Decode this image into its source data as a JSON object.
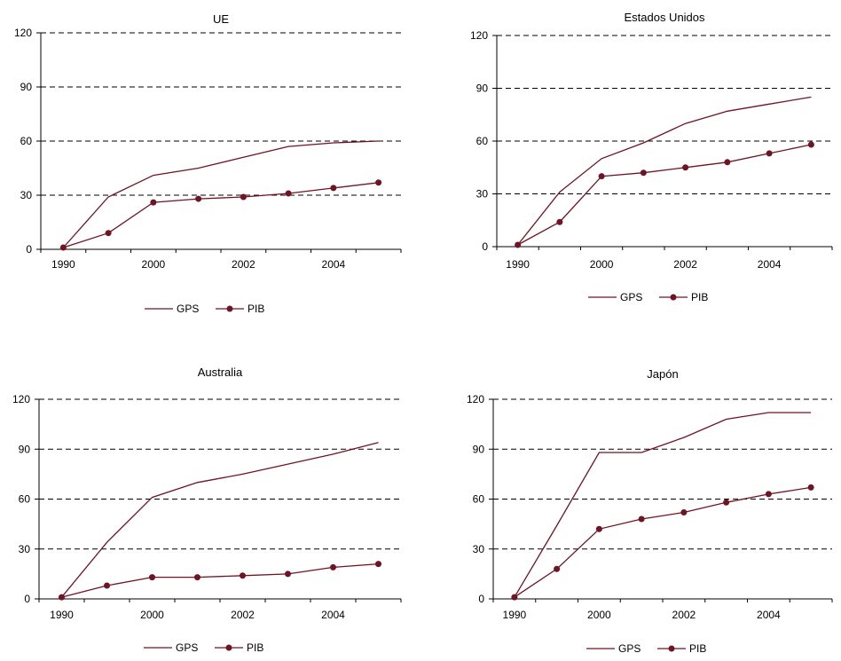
{
  "colors": {
    "series": "#6e1423",
    "grid": "#000000",
    "axis": "#000000"
  },
  "chart_data": [
    {
      "type": "line",
      "title": "UE",
      "x": [
        1990,
        1999,
        2000,
        2001,
        2002,
        2003,
        2004,
        2005
      ],
      "xticks": [
        "1990",
        "2000",
        "2002",
        "2004"
      ],
      "xtick_index": [
        0,
        2,
        4,
        6
      ],
      "yticks": [
        "0",
        "30",
        "60",
        "90",
        "120"
      ],
      "ylim": [
        0,
        120
      ],
      "grid": true,
      "legend": "bottom",
      "series": [
        {
          "name": "GPS",
          "marker": false,
          "values": [
            1,
            29,
            41,
            45,
            51,
            57,
            59,
            60
          ]
        },
        {
          "name": "PIB",
          "marker": true,
          "values": [
            1,
            9,
            26,
            28,
            29,
            31,
            34,
            37
          ]
        }
      ]
    },
    {
      "type": "line",
      "title": "Estados Unidos",
      "x": [
        1990,
        1999,
        2000,
        2001,
        2002,
        2003,
        2004,
        2005
      ],
      "xticks": [
        "1990",
        "2000",
        "2002",
        "2004"
      ],
      "xtick_index": [
        0,
        2,
        4,
        6
      ],
      "yticks": [
        "0",
        "30",
        "60",
        "90",
        "120"
      ],
      "ylim": [
        0,
        120
      ],
      "grid": true,
      "legend": "bottom",
      "series": [
        {
          "name": "GPS",
          "marker": false,
          "values": [
            1,
            31,
            50,
            59,
            70,
            77,
            81,
            85
          ]
        },
        {
          "name": "PIB",
          "marker": true,
          "values": [
            1,
            14,
            40,
            42,
            45,
            48,
            53,
            58
          ]
        }
      ]
    },
    {
      "type": "line",
      "title": "Australia",
      "x": [
        1990,
        1999,
        2000,
        2001,
        2002,
        2003,
        2004,
        2005
      ],
      "xticks": [
        "1990",
        "2000",
        "2002",
        "2004"
      ],
      "xtick_index": [
        0,
        2,
        4,
        6
      ],
      "yticks": [
        "0",
        "30",
        "60",
        "90",
        "120"
      ],
      "ylim": [
        0,
        120
      ],
      "grid": true,
      "legend": "bottom",
      "series": [
        {
          "name": "GPS",
          "marker": false,
          "values": [
            1,
            34,
            61,
            70,
            75,
            81,
            87,
            94
          ]
        },
        {
          "name": "PIB",
          "marker": true,
          "values": [
            1,
            8,
            13,
            13,
            14,
            15,
            19,
            21
          ]
        }
      ]
    },
    {
      "type": "line",
      "title": "Japón",
      "x": [
        1990,
        1999,
        2000,
        2001,
        2002,
        2003,
        2004,
        2005
      ],
      "xticks": [
        "1990",
        "2000",
        "2002",
        "2004"
      ],
      "xtick_index": [
        0,
        2,
        4,
        6
      ],
      "yticks": [
        "0",
        "30",
        "60",
        "90",
        "120"
      ],
      "ylim": [
        0,
        120
      ],
      "grid": true,
      "legend": "bottom",
      "series": [
        {
          "name": "GPS",
          "marker": false,
          "values": [
            1,
            44,
            88,
            88,
            97,
            108,
            112,
            112
          ]
        },
        {
          "name": "PIB",
          "marker": true,
          "values": [
            1,
            18,
            42,
            48,
            52,
            58,
            63,
            67
          ]
        }
      ]
    }
  ]
}
